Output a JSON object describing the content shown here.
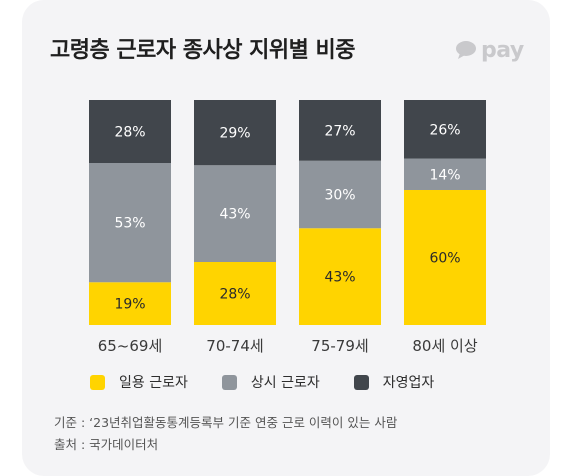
{
  "title": "고령층 근로자 종사상 지위별 비중",
  "brand": {
    "text": "pay",
    "icon": "speech-bubble-icon"
  },
  "colors": {
    "employed": "#ffd400",
    "regular": "#8f959c",
    "self_employed": "#41464c",
    "card_bg": "#f4f4f6"
  },
  "chart_data": {
    "type": "bar",
    "stacked": true,
    "normalized": true,
    "categories": [
      "65~69세",
      "70-74세",
      "75-79세",
      "80세 이상"
    ],
    "series": [
      {
        "name": "일용 근로자",
        "values": [
          19,
          28,
          43,
          60
        ],
        "labels": [
          "19%",
          "28%",
          "43%",
          "60%"
        ],
        "color": "#ffd400"
      },
      {
        "name": "상시 근로자",
        "values": [
          53,
          43,
          30,
          14
        ],
        "labels": [
          "53%",
          "43%",
          "30%",
          "14%"
        ],
        "color": "#8f959c"
      },
      {
        "name": "자영업자",
        "values": [
          28,
          29,
          27,
          26
        ],
        "labels": [
          "28%",
          "29%",
          "27%",
          "26%"
        ],
        "color": "#41464c"
      }
    ],
    "ylim": [
      0,
      100
    ],
    "grid": false,
    "legend_position": "bottom"
  },
  "notes": {
    "basis": "기준 : ‘23년취업활동통계등록부 기준 연중 근로 이력이 있는 사람",
    "source": "출처 : 국가데이터처"
  }
}
